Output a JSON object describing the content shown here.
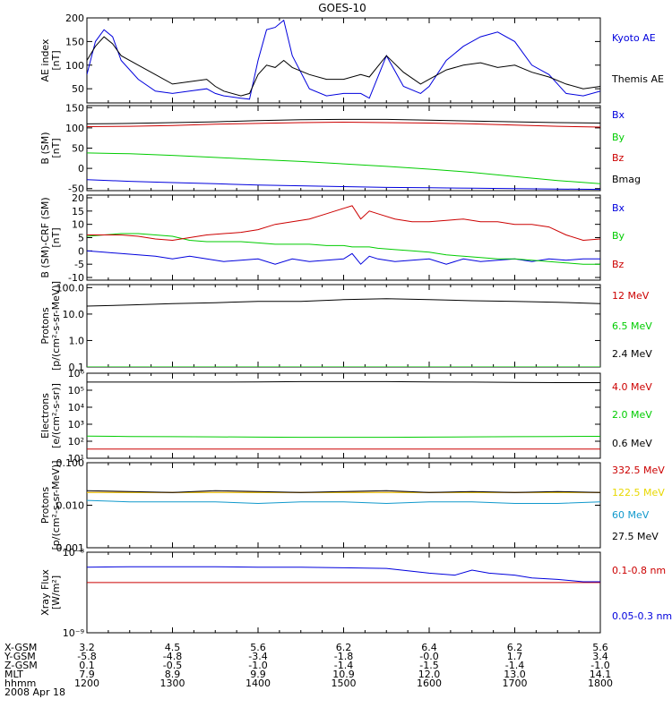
{
  "title": "GOES-10",
  "date_label": "2008 Apr 18",
  "colors": {
    "black": "#000000",
    "blue": "#0000dd",
    "red": "#cc0000",
    "green": "#00cc00",
    "yellow": "#e8d800",
    "cyan": "#1199cc"
  },
  "chart_data": [
    {
      "type": "line",
      "ylabel": [
        "AE index",
        "[nT]"
      ],
      "ylim": [
        20,
        200
      ],
      "ticks": [
        {
          "v": 200,
          "label": "200"
        },
        {
          "v": 150,
          "label": "150"
        },
        {
          "v": 100,
          "label": "100"
        },
        {
          "v": 50,
          "label": "50"
        }
      ],
      "x": [
        12.0,
        12.1,
        12.2,
        12.3,
        12.4,
        12.6,
        12.8,
        13.0,
        13.2,
        13.4,
        13.5,
        13.6,
        13.8,
        13.9,
        14.0,
        14.1,
        14.2,
        14.3,
        14.4,
        14.6,
        14.8,
        15.0,
        15.2,
        15.3,
        15.5,
        15.7,
        15.9,
        16.0,
        16.2,
        16.4,
        16.6,
        16.8,
        17.0,
        17.2,
        17.4,
        17.6,
        17.8,
        18.0
      ],
      "series": [
        {
          "name": "Kyoto AE",
          "color": "blue",
          "values": [
            80,
            150,
            175,
            160,
            110,
            70,
            45,
            40,
            45,
            50,
            40,
            35,
            30,
            28,
            110,
            175,
            180,
            195,
            120,
            50,
            35,
            40,
            40,
            30,
            120,
            55,
            40,
            55,
            110,
            140,
            160,
            170,
            150,
            100,
            80,
            40,
            35,
            45
          ]
        },
        {
          "name": "Themis AE",
          "color": "black",
          "values": [
            110,
            140,
            160,
            145,
            120,
            100,
            80,
            60,
            65,
            70,
            55,
            45,
            35,
            40,
            80,
            100,
            95,
            110,
            95,
            80,
            70,
            70,
            80,
            75,
            120,
            85,
            60,
            70,
            90,
            100,
            105,
            95,
            100,
            85,
            75,
            60,
            50,
            55
          ]
        }
      ]
    },
    {
      "type": "line",
      "ylabel": [
        "B (SM)",
        "[nT]"
      ],
      "ylim": [
        -55,
        155
      ],
      "ticks": [
        {
          "v": 150,
          "label": "150"
        },
        {
          "v": 100,
          "label": "100"
        },
        {
          "v": 50,
          "label": "50"
        },
        {
          "v": 0,
          "label": "0"
        },
        {
          "v": -50,
          "label": "-50"
        }
      ],
      "x": [
        12.0,
        12.5,
        13.0,
        13.5,
        14.0,
        14.5,
        15.0,
        15.5,
        16.0,
        16.5,
        17.0,
        17.5,
        18.0
      ],
      "series": [
        {
          "name": "Bx",
          "color": "blue",
          "values": [
            -28,
            -32,
            -35,
            -38,
            -41,
            -43,
            -45,
            -47,
            -48,
            -49,
            -50,
            -51,
            -52
          ]
        },
        {
          "name": "By",
          "color": "green",
          "values": [
            38,
            36,
            32,
            27,
            22,
            17,
            11,
            5,
            -2,
            -10,
            -20,
            -30,
            -38
          ]
        },
        {
          "name": "Bz",
          "color": "red",
          "values": [
            103,
            104,
            106,
            109,
            111,
            113,
            114,
            113,
            112,
            110,
            107,
            104,
            102
          ]
        },
        {
          "name": "Bmag",
          "color": "black",
          "values": [
            110,
            111,
            113,
            115,
            118,
            120,
            121,
            121,
            119,
            117,
            115,
            113,
            112
          ]
        }
      ]
    },
    {
      "type": "line",
      "ylabel": [
        "B (SM)-CRF (SM)",
        "[nT]"
      ],
      "ylim": [
        -11,
        21
      ],
      "ticks": [
        {
          "v": 20,
          "label": "20"
        },
        {
          "v": 15,
          "label": "15"
        },
        {
          "v": 10,
          "label": "10"
        },
        {
          "v": 5,
          "label": "5"
        },
        {
          "v": 0,
          "label": "0"
        },
        {
          "v": -5,
          "label": "-5"
        },
        {
          "v": -10,
          "label": "-10"
        }
      ],
      "x": [
        12.0,
        12.2,
        12.4,
        12.6,
        12.8,
        13.0,
        13.2,
        13.4,
        13.6,
        13.8,
        14.0,
        14.2,
        14.4,
        14.6,
        14.8,
        15.0,
        15.1,
        15.2,
        15.3,
        15.4,
        15.6,
        15.8,
        16.0,
        16.2,
        16.4,
        16.6,
        16.8,
        17.0,
        17.2,
        17.4,
        17.6,
        17.8,
        18.0
      ],
      "series": [
        {
          "name": "Bx",
          "color": "blue",
          "values": [
            0,
            -0.5,
            -1,
            -1.5,
            -2,
            -3,
            -2,
            -3,
            -4,
            -3.5,
            -3,
            -5,
            -3,
            -4,
            -3.5,
            -3,
            -1,
            -5,
            -2,
            -3,
            -4,
            -3.5,
            -3,
            -5,
            -3,
            -4,
            -3.5,
            -3,
            -4,
            -3,
            -3.5,
            -3,
            -3
          ]
        },
        {
          "name": "By",
          "color": "green",
          "values": [
            5.5,
            6,
            6.5,
            6.5,
            6,
            5.5,
            4,
            3.5,
            3.5,
            3.5,
            3,
            2.5,
            2.5,
            2.5,
            2,
            2,
            1.5,
            1.5,
            1.5,
            1,
            0.5,
            0,
            -0.5,
            -1.5,
            -2,
            -2.5,
            -3,
            -3,
            -3.5,
            -4,
            -4.5,
            -5,
            -5
          ]
        },
        {
          "name": "Bz",
          "color": "red",
          "values": [
            6,
            6,
            6,
            5.5,
            4.5,
            4,
            5,
            6,
            6.5,
            7,
            8,
            10,
            11,
            12,
            14,
            16,
            17,
            12,
            15,
            14,
            12,
            11,
            11,
            11.5,
            12,
            11,
            11,
            10,
            10,
            9,
            6,
            4,
            4.5
          ]
        }
      ]
    },
    {
      "type": "line",
      "ylabel": [
        "Protons",
        "[p/(cm²-s-sr-MeV)]"
      ],
      "log": true,
      "ylim": [
        0.1,
        130
      ],
      "ticks": [
        {
          "v": 100,
          "label": "100.0"
        },
        {
          "v": 10,
          "label": "10.0"
        },
        {
          "v": 1,
          "label": "1.0"
        },
        {
          "v": 0.1,
          "label": "0.1"
        }
      ],
      "x": [
        12.0,
        12.5,
        13.0,
        13.5,
        14.0,
        14.5,
        15.0,
        15.5,
        16.0,
        16.5,
        17.0,
        17.5,
        18.0
      ],
      "series": [
        {
          "name": "12 MeV",
          "color": "red",
          "values": [
            0.1,
            0.1,
            0.1,
            0.1,
            0.1,
            0.1,
            0.1,
            0.1,
            0.1,
            0.1,
            0.1,
            0.1,
            0.1
          ]
        },
        {
          "name": "6.5 MeV",
          "color": "green",
          "values": [
            0.1,
            0.1,
            0.1,
            0.1,
            0.1,
            0.1,
            0.1,
            0.1,
            0.1,
            0.1,
            0.1,
            0.1,
            0.1
          ]
        },
        {
          "name": "2.4 MeV",
          "color": "black",
          "values": [
            20,
            22,
            25,
            27,
            30,
            30,
            35,
            38,
            35,
            32,
            30,
            28,
            25
          ]
        }
      ]
    },
    {
      "type": "line",
      "ylabel": [
        "Electrons",
        "[e/(cm²-s-sr)]"
      ],
      "log": true,
      "ylim": [
        10,
        1000000
      ],
      "ticks": [
        {
          "v": 1000000,
          "label": "10⁶"
        },
        {
          "v": 100000,
          "label": "10⁵"
        },
        {
          "v": 10000,
          "label": "10⁴"
        },
        {
          "v": 1000,
          "label": "10³"
        },
        {
          "v": 100,
          "label": "10²"
        },
        {
          "v": 10,
          "label": "10¹"
        }
      ],
      "x": [
        12.0,
        12.5,
        13.0,
        13.5,
        14.0,
        14.5,
        15.0,
        15.5,
        16.0,
        16.5,
        17.0,
        17.5,
        18.0
      ],
      "series": [
        {
          "name": "4.0 MeV",
          "color": "red",
          "values": [
            35,
            35,
            35,
            35,
            35,
            35,
            35,
            35,
            35,
            35,
            35,
            35,
            35
          ]
        },
        {
          "name": "2.0 MeV",
          "color": "green",
          "values": [
            200,
            190,
            185,
            180,
            175,
            170,
            170,
            170,
            175,
            180,
            185,
            190,
            195
          ]
        },
        {
          "name": "0.6 MeV",
          "color": "black",
          "values": [
            300000,
            300000,
            300000,
            300000,
            310000,
            320000,
            320000,
            320000,
            310000,
            300000,
            290000,
            280000,
            280000
          ]
        }
      ]
    },
    {
      "type": "line",
      "ylabel": [
        "Protons",
        "[p/(cm²-s-sr-MeV)]"
      ],
      "log": true,
      "ylim": [
        0.001,
        0.1
      ],
      "ticks": [
        {
          "v": 0.1,
          "label": "0.100"
        },
        {
          "v": 0.01,
          "label": "0.010"
        },
        {
          "v": 0.001,
          "label": "0.001"
        }
      ],
      "x": [
        12.0,
        12.5,
        13.0,
        13.5,
        14.0,
        14.5,
        15.0,
        15.5,
        16.0,
        16.5,
        17.0,
        17.5,
        18.0
      ],
      "series": [
        {
          "name": "332.5 MeV",
          "color": "red",
          "values": [
            0.02,
            0.02,
            0.02,
            0.02,
            0.02,
            0.02,
            0.02,
            0.02,
            0.02,
            0.02,
            0.02,
            0.02,
            0.02
          ]
        },
        {
          "name": "122.5 MeV",
          "color": "yellow",
          "values": [
            0.02,
            0.02,
            0.02,
            0.02,
            0.02,
            0.02,
            0.02,
            0.02,
            0.02,
            0.02,
            0.02,
            0.02,
            0.02
          ]
        },
        {
          "name": "60 MeV",
          "color": "cyan",
          "values": [
            0.013,
            0.012,
            0.012,
            0.012,
            0.011,
            0.012,
            0.012,
            0.011,
            0.012,
            0.012,
            0.011,
            0.011,
            0.012
          ]
        },
        {
          "name": "27.5 MeV",
          "color": "black",
          "values": [
            0.022,
            0.021,
            0.02,
            0.022,
            0.021,
            0.02,
            0.021,
            0.022,
            0.02,
            0.021,
            0.02,
            0.021,
            0.02
          ]
        }
      ]
    },
    {
      "type": "line",
      "ylabel": [
        "Xray Flux",
        "[W/m²]"
      ],
      "log": true,
      "ylim": [
        1e-09,
        1e-08
      ],
      "ticks": [
        {
          "v": 1e-08,
          "label": "10⁻⁸"
        },
        {
          "v": 1e-09,
          "label": "10⁻⁹"
        }
      ],
      "x": [
        12.0,
        12.5,
        13.0,
        13.5,
        14.0,
        14.5,
        15.0,
        15.5,
        16.0,
        16.3,
        16.5,
        16.7,
        17.0,
        17.2,
        17.5,
        17.8,
        18.0
      ],
      "series": [
        {
          "name": "0.1-0.8 nm",
          "color": "red",
          "values": [
            4.2e-09,
            4.2e-09,
            4.2e-09,
            4.2e-09,
            4.2e-09,
            4.2e-09,
            4.2e-09,
            4.2e-09,
            4.2e-09,
            4.2e-09,
            4.2e-09,
            4.2e-09,
            4.2e-09,
            4.2e-09,
            4.2e-09,
            4.2e-09,
            4.2e-09
          ]
        },
        {
          "name": "0.05-0.3 nm",
          "color": "blue",
          "values": [
            6.5e-09,
            6.6e-09,
            6.6e-09,
            6.6e-09,
            6.5e-09,
            6.5e-09,
            6.4e-09,
            6.3e-09,
            5.5e-09,
            5.2e-09,
            6e-09,
            5.5e-09,
            5.2e-09,
            4.8e-09,
            4.6e-09,
            4.3e-09,
            4.3e-09
          ]
        }
      ]
    }
  ],
  "x_axis": {
    "rows": [
      {
        "name": "X-GSM",
        "values": [
          "3.2",
          "4.5",
          "5.6",
          "6.2",
          "6.4",
          "6.2",
          "5.6"
        ]
      },
      {
        "name": "Y-GSM",
        "values": [
          "-5.8",
          "-4.8",
          "-3.4",
          "-1.8",
          "-0.0",
          "1.7",
          "3.4"
        ]
      },
      {
        "name": "Z-GSM",
        "values": [
          "0.1",
          "-0.5",
          "-1.0",
          "-1.4",
          "-1.5",
          "-1.4",
          "-1.0"
        ]
      },
      {
        "name": "MLT",
        "values": [
          "7.9",
          "8.9",
          "9.9",
          "10.9",
          "12.0",
          "13.0",
          "14.1"
        ]
      },
      {
        "name": "hhmm",
        "values": [
          "1200",
          "1300",
          "1400",
          "1500",
          "1600",
          "1700",
          "1800"
        ]
      }
    ]
  }
}
